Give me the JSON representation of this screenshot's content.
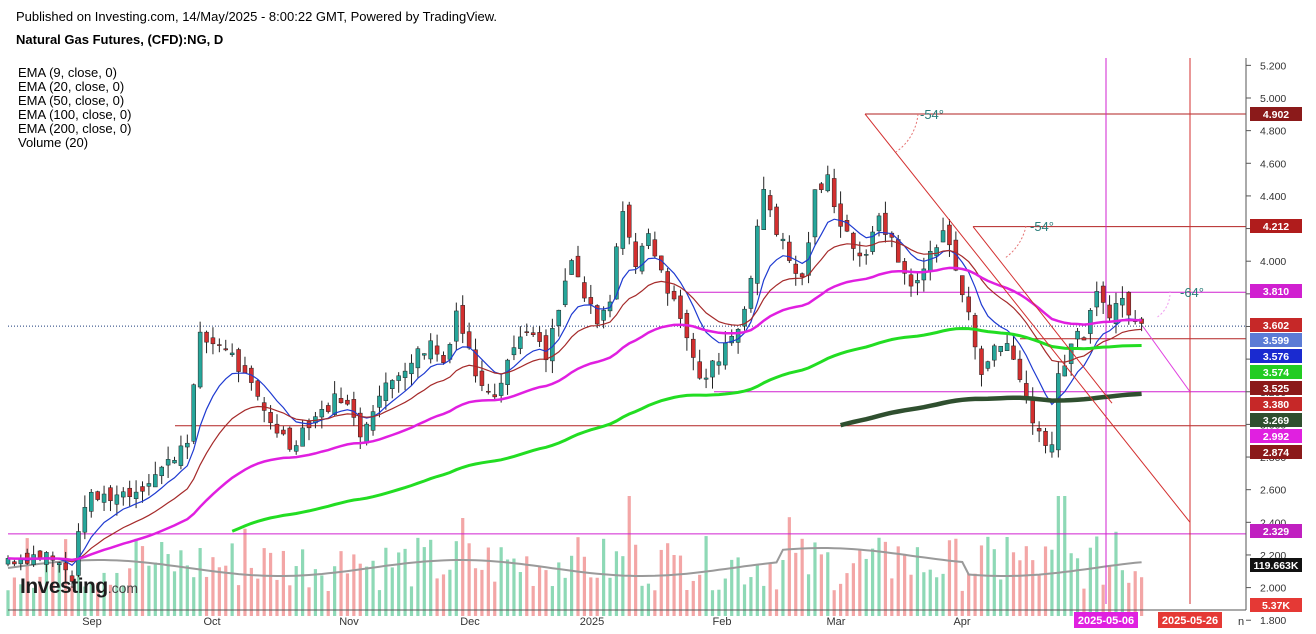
{
  "header": {
    "published": "Published on Investing.com, 14/May/2025 - 8:00:22 GMT, Powered by TradingView.",
    "symbol": "Natural Gas Futures, (CFD):NG, D"
  },
  "indicators": [
    "EMA (9, close, 0)",
    "EMA (20, close, 0)",
    "EMA (50, close, 0)",
    "EMA (100, close, 0)",
    "EMA (200, close, 0)",
    "Volume (20)"
  ],
  "logo": {
    "brand": "Investing",
    "suffix": ".com"
  },
  "colors": {
    "up": "#26a69a",
    "down": "#d32f2f",
    "vol_up": "#8ed9b6",
    "vol_down": "#f3a6a6",
    "ema9": "#1f3bd1",
    "ema20": "#a52a2a",
    "ema50": "#e01fe0",
    "ema100": "#22dd22",
    "ema200": "#2f4f2f",
    "level_red": "#b22222",
    "level_magenta": "#d020d0"
  },
  "angles": [
    "-54°",
    "-54°",
    "-64°"
  ],
  "x_axis": {
    "labels": [
      "Sep",
      "Oct",
      "Nov",
      "Dec",
      "2025",
      "Feb",
      "Mar",
      "Apr"
    ],
    "highlight": [
      "2025-05-06",
      "2025-05-26"
    ],
    "partial_label": "n"
  },
  "price_axis": {
    "ticks": [
      "5.200",
      "5.000",
      "4.800",
      "4.600",
      "4.400",
      "4.200",
      "4.000",
      "3.800",
      "3.600",
      "3.400",
      "3.200",
      "3.000",
      "2.800",
      "2.600",
      "2.400",
      "2.200",
      "2.000",
      "1.800"
    ],
    "badges": [
      {
        "value": "4.902",
        "color": "#8b1a1a"
      },
      {
        "value": "4.212",
        "color": "#b01c1c"
      },
      {
        "value": "3.810",
        "color": "#d020d0"
      },
      {
        "value": "3.602",
        "color": "#c62828"
      },
      {
        "value": "3.599",
        "color": "#5b7bd5"
      },
      {
        "value": "3.576",
        "color": "#1a2ad0"
      },
      {
        "value": "3.574",
        "color": "#22cc22"
      },
      {
        "value": "3.525",
        "color": "#8b1a1a"
      },
      {
        "value": "3.380",
        "color": "#c62828"
      },
      {
        "value": "3.269",
        "color": "#2f4f2f"
      },
      {
        "value": "2.992",
        "color": "#e020e0"
      },
      {
        "value": "2.874",
        "color": "#8b1a1a"
      },
      {
        "value": "2.329",
        "color": "#c020c0"
      },
      {
        "value": "119.663K",
        "color": "#111111"
      },
      {
        "value": "5.37K",
        "color": "#e53935"
      }
    ]
  },
  "chart_data": {
    "type": "candlestick",
    "title": "Natural Gas Futures, (CFD):NG, D",
    "y_range": [
      1.75,
      5.25
    ],
    "last_close": 3.602,
    "levels": [
      4.902,
      4.212,
      3.81,
      3.525,
      3.269,
      2.874,
      2.329
    ],
    "ema_last": {
      "EMA9": 3.576,
      "EMA20": 3.525,
      "EMA50": 3.599,
      "EMA100": 3.574,
      "EMA200": 3.269
    },
    "volume_last": "119.663K"
  }
}
